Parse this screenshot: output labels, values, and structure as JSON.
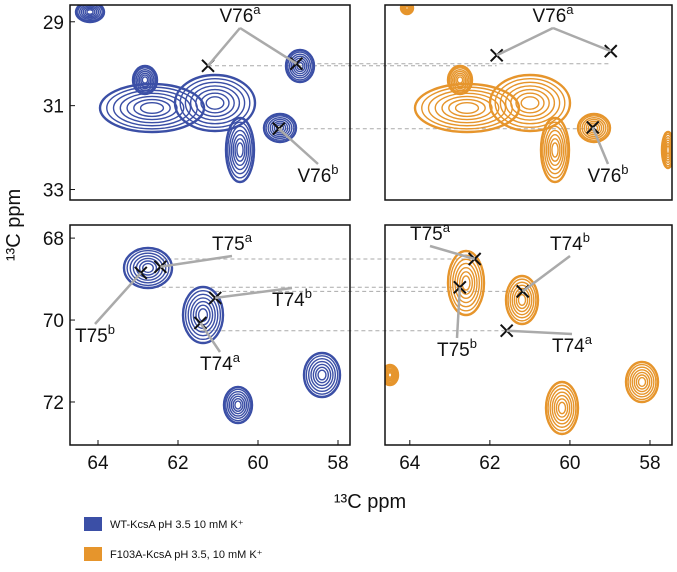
{
  "chart_data": [
    {
      "type": "scatter",
      "color": "#3b4fa6",
      "xlim": [
        64.7,
        57.7
      ],
      "ylim": [
        28.6,
        33.25
      ],
      "yticks": [
        29,
        31,
        33
      ],
      "x": [
        61.25,
        59.04,
        59.48
      ],
      "y": [
        30.05,
        30.0,
        31.55
      ],
      "annotations": [
        {
          "text": "V76",
          "sup": "a"
        },
        {
          "text": "V76",
          "sup": "b"
        }
      ]
    },
    {
      "type": "scatter",
      "color": "#e6952c",
      "xlim": [
        64.62,
        57.45
      ],
      "ylim": [
        28.6,
        33.25
      ],
      "x": [
        61.83,
        58.98,
        59.43
      ],
      "y": [
        29.8,
        29.7,
        31.52
      ],
      "annotations": [
        {
          "text": "V76",
          "sup": "a"
        },
        {
          "text": "V76",
          "sup": "b"
        }
      ]
    },
    {
      "type": "scatter",
      "color": "#3b4fa6",
      "xlim": [
        64.7,
        57.7
      ],
      "ylim": [
        67.68,
        73.05
      ],
      "xticks": [
        64,
        62,
        60,
        58
      ],
      "yticks": [
        68,
        70,
        72
      ],
      "x": [
        62.93,
        62.44,
        61.07,
        61.44
      ],
      "y": [
        68.85,
        68.7,
        69.46,
        70.07
      ],
      "annotations": [
        {
          "text": "T75",
          "sup": "b"
        },
        {
          "text": "T75",
          "sup": "a"
        },
        {
          "text": "T74",
          "sup": "b"
        },
        {
          "text": "T74",
          "sup": "a"
        }
      ]
    },
    {
      "type": "scatter",
      "color": "#e6952c",
      "xlim": [
        64.62,
        57.45
      ],
      "ylim": [
        67.68,
        73.05
      ],
      "xticks": [
        64,
        62,
        60,
        58
      ],
      "x": [
        62.75,
        62.38,
        61.18,
        61.58
      ],
      "y": [
        69.2,
        68.51,
        69.3,
        70.26
      ],
      "annotations": [
        {
          "text": "T75",
          "sup": "b"
        },
        {
          "text": "T75",
          "sup": "a"
        },
        {
          "text": "T74",
          "sup": "b"
        },
        {
          "text": "T74",
          "sup": "a"
        }
      ]
    }
  ],
  "x_label": "¹³C ppm",
  "y_label": "¹³C ppm",
  "legend": [
    {
      "name": "WT-KcsA pH 3.5 10 mM K⁺",
      "color": "#3b4fa6"
    },
    {
      "name": "F103A-KcsA pH 3.5, 10 mM K⁺",
      "color": "#e6952c"
    }
  ]
}
